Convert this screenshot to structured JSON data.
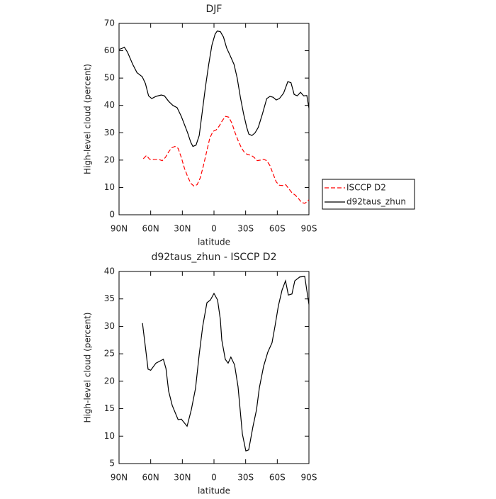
{
  "chart_data": [
    {
      "type": "line",
      "title": "DJF",
      "xlabel": "latitude",
      "ylabel": "High-level cloud (percent)",
      "xlim": [
        90,
        -90
      ],
      "ylim": [
        0,
        70
      ],
      "xticks": [
        {
          "value": 90,
          "label": "90N"
        },
        {
          "value": 60,
          "label": "60N"
        },
        {
          "value": 30,
          "label": "30N"
        },
        0,
        {
          "value": -30,
          "label": "30S"
        },
        {
          "value": -60,
          "label": "60S"
        },
        {
          "value": -90,
          "label": "90S"
        }
      ],
      "yticks": [
        0,
        10,
        20,
        30,
        40,
        50,
        60,
        70
      ],
      "legend": "right",
      "series": [
        {
          "name": "ISCCP D2",
          "color": "#ff0000",
          "linestyle": "dashed",
          "x": [
            67,
            64,
            61,
            57,
            52,
            49,
            46,
            43,
            40,
            37,
            34,
            31,
            28,
            25,
            22,
            19,
            16,
            13,
            10,
            7,
            4,
            1,
            -2,
            -5,
            -8,
            -11,
            -14,
            -17,
            -20,
            -23,
            -26,
            -29,
            -32,
            -35,
            -38,
            -41,
            -44,
            -47,
            -50,
            -53,
            -56,
            -59,
            -62,
            -65,
            -68,
            -71,
            -74,
            -77,
            -80,
            -83,
            -86,
            -88,
            -90
          ],
          "values": [
            20.5,
            21.7,
            20.3,
            20.2,
            20.2,
            19.8,
            21,
            23,
            24.5,
            25,
            24.3,
            21,
            17,
            14,
            11.5,
            10.5,
            11,
            13.5,
            18,
            23,
            28,
            30.5,
            31,
            32.5,
            34.5,
            36,
            35.7,
            33.5,
            30,
            27,
            24.5,
            22.7,
            22,
            21.8,
            21,
            19.8,
            20,
            20.3,
            19.8,
            18,
            15,
            12,
            10.8,
            10.7,
            11,
            9.5,
            8,
            7.2,
            6,
            4.5,
            4.2,
            4.7,
            5.5
          ]
        },
        {
          "name": "d92taus_zhun",
          "color": "#000000",
          "linestyle": "solid",
          "x": [
            90,
            87.5,
            85,
            82,
            77,
            73,
            68,
            65,
            62,
            59,
            55,
            50,
            47,
            43,
            39,
            35,
            31,
            28,
            25,
            22,
            20,
            17,
            14,
            11,
            8,
            5,
            2,
            -1,
            -3,
            -6,
            -9,
            -12,
            -15,
            -19,
            -22,
            -25,
            -28,
            -31,
            -33,
            -36,
            -39,
            -42,
            -46,
            -50,
            -53,
            -56,
            -59,
            -62,
            -66,
            -70,
            -73,
            -76,
            -79,
            -82,
            -85,
            -88,
            -90
          ],
          "values": [
            60.5,
            60.8,
            61.3,
            59.5,
            55,
            52,
            50.5,
            48,
            43.5,
            42.5,
            43.3,
            43.8,
            43.5,
            41.5,
            40,
            39.2,
            36,
            33,
            30,
            26.5,
            25,
            25.5,
            29,
            38,
            47,
            55,
            62,
            66,
            67.2,
            67,
            65,
            61,
            58.5,
            55,
            50,
            43,
            37,
            32,
            29.5,
            29,
            30,
            32,
            37,
            42.5,
            43.3,
            43,
            42,
            42.5,
            44.5,
            48.7,
            48.3,
            44,
            43.5,
            44.8,
            43.5,
            43.6,
            39
          ]
        }
      ]
    },
    {
      "type": "line",
      "title": "d92taus_zhun - ISCCP D2",
      "xlabel": "latitude",
      "ylabel": "High-level cloud (percent)",
      "xlim": [
        90,
        -90
      ],
      "ylim": [
        5,
        40
      ],
      "xticks": [
        {
          "value": 90,
          "label": "90N"
        },
        {
          "value": 60,
          "label": "60N"
        },
        {
          "value": 30,
          "label": "30N"
        },
        0,
        {
          "value": -30,
          "label": "30S"
        },
        {
          "value": -60,
          "label": "60S"
        },
        {
          "value": -90,
          "label": "90S"
        }
      ],
      "yticks": [
        5,
        10,
        15,
        20,
        25,
        30,
        35,
        40
      ],
      "series": [
        {
          "color": "#000000",
          "linestyle": "solid",
          "x": [
            67.8,
            65,
            62.5,
            60,
            55,
            48,
            45.5,
            43,
            39.6,
            34,
            31,
            25.5,
            21.5,
            17.5,
            14,
            10.7,
            6.7,
            3.4,
            0,
            -3.4,
            -6,
            -7.4,
            -10.7,
            -13.4,
            -16,
            -19.5,
            -22.8,
            -26.9,
            -30.2,
            -32.9,
            -36.9,
            -40.3,
            -43,
            -47,
            -51,
            -55,
            -57.8,
            -61,
            -64.5,
            -67.8,
            -70.5,
            -73.9,
            -76.6,
            -81.3,
            -86,
            -90
          ],
          "values": [
            30.6,
            26.2,
            22.2,
            22,
            23.3,
            24,
            22.3,
            18.2,
            15.6,
            13,
            13.1,
            11.8,
            14.8,
            18.7,
            24.9,
            30,
            34.3,
            34.8,
            36,
            34.8,
            31.3,
            27.5,
            24,
            23.3,
            24.4,
            23,
            19,
            10.4,
            7.3,
            7.5,
            11.7,
            14.8,
            18.8,
            22.7,
            25.3,
            27,
            30,
            33.7,
            36.6,
            38.3,
            35.7,
            35.9,
            38.3,
            39,
            39.1,
            34
          ]
        }
      ]
    }
  ]
}
